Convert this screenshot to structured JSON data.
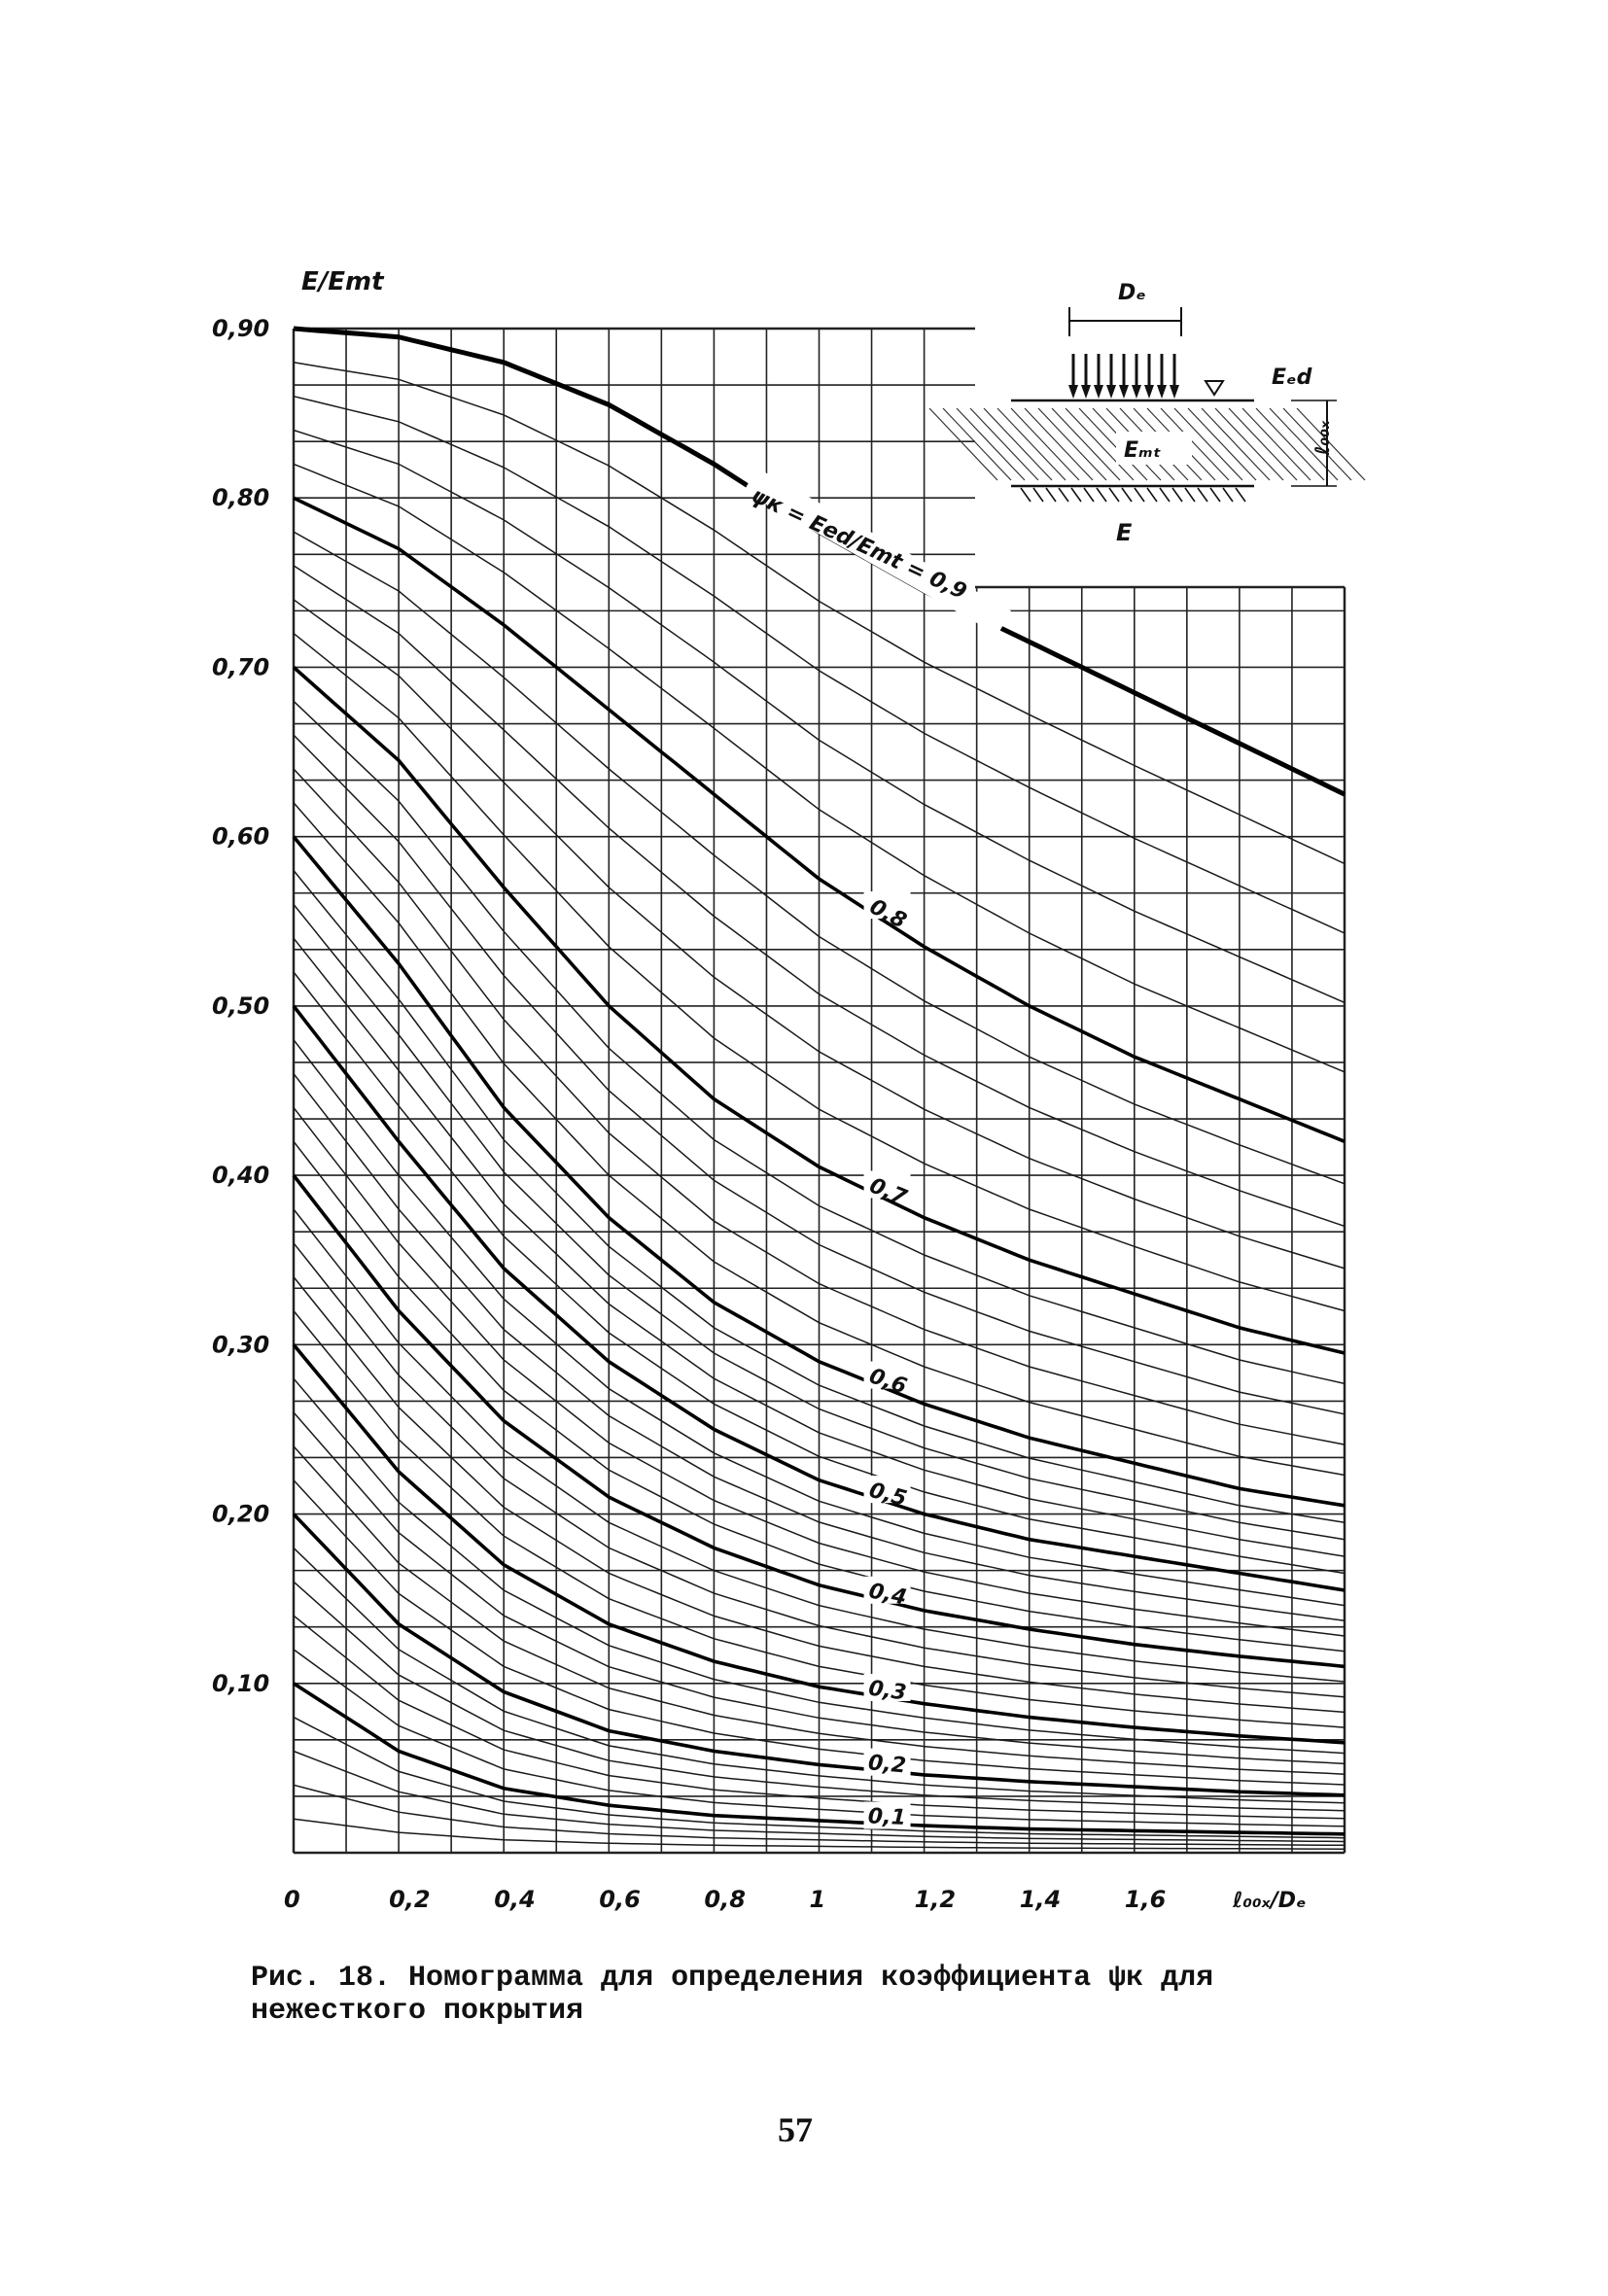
{
  "chart_data": {
    "type": "line",
    "ylabel": "E/Emt",
    "xlabel": "ℓ₀₀ₓ/Dₑ",
    "xlim": [
      0,
      2.0
    ],
    "ylim": [
      0,
      0.9
    ],
    "x_ticks": [
      {
        "value": 0,
        "label": "0"
      },
      {
        "value": 0.2,
        "label": "0,2"
      },
      {
        "value": 0.4,
        "label": "0,4"
      },
      {
        "value": 0.6,
        "label": "0,6"
      },
      {
        "value": 0.8,
        "label": "0,8"
      },
      {
        "value": 1.0,
        "label": "1"
      },
      {
        "value": 1.2,
        "label": "1,2"
      },
      {
        "value": 1.4,
        "label": "1,4"
      },
      {
        "value": 1.6,
        "label": "1,6"
      }
    ],
    "y_ticks": [
      {
        "value": 0.9,
        "label": "0,90"
      },
      {
        "value": 0.8,
        "label": "0,80"
      },
      {
        "value": 0.7,
        "label": "0,70"
      },
      {
        "value": 0.6,
        "label": "0,60"
      },
      {
        "value": 0.5,
        "label": "0,50"
      },
      {
        "value": 0.4,
        "label": "0,40"
      },
      {
        "value": 0.3,
        "label": "0,30"
      },
      {
        "value": 0.2,
        "label": "0,20"
      },
      {
        "value": 0.1,
        "label": "0,10"
      }
    ],
    "grid": true,
    "series": [
      {
        "name": "ψк = Eed/Emt = 0,9",
        "label_at_x": 1.1,
        "x": [
          0,
          0.2,
          0.4,
          0.6,
          0.8,
          1.0,
          1.2,
          1.4,
          1.6,
          1.8,
          2.0
        ],
        "values": [
          0.9,
          0.895,
          0.88,
          0.855,
          0.82,
          0.78,
          0.745,
          0.715,
          0.685,
          0.655,
          0.625
        ]
      },
      {
        "name": "0,8",
        "label_at_x": 1.1,
        "x": [
          0,
          0.2,
          0.4,
          0.6,
          0.8,
          1.0,
          1.2,
          1.4,
          1.6,
          1.8,
          2.0
        ],
        "values": [
          0.8,
          0.77,
          0.725,
          0.675,
          0.625,
          0.575,
          0.535,
          0.5,
          0.47,
          0.445,
          0.42
        ]
      },
      {
        "name": "0,7",
        "label_at_x": 1.1,
        "x": [
          0,
          0.2,
          0.4,
          0.6,
          0.8,
          1.0,
          1.2,
          1.4,
          1.6,
          1.8,
          2.0
        ],
        "values": [
          0.7,
          0.645,
          0.57,
          0.5,
          0.445,
          0.405,
          0.375,
          0.35,
          0.33,
          0.31,
          0.295
        ]
      },
      {
        "name": "0,6",
        "label_at_x": 1.1,
        "x": [
          0,
          0.2,
          0.4,
          0.6,
          0.8,
          1.0,
          1.2,
          1.4,
          1.6,
          1.8,
          2.0
        ],
        "values": [
          0.6,
          0.525,
          0.44,
          0.375,
          0.325,
          0.29,
          0.265,
          0.245,
          0.23,
          0.215,
          0.205
        ]
      },
      {
        "name": "0,5",
        "label_at_x": 1.1,
        "x": [
          0,
          0.2,
          0.4,
          0.6,
          0.8,
          1.0,
          1.2,
          1.4,
          1.6,
          1.8,
          2.0
        ],
        "values": [
          0.5,
          0.42,
          0.345,
          0.29,
          0.25,
          0.22,
          0.2,
          0.185,
          0.175,
          0.165,
          0.155
        ]
      },
      {
        "name": "0,4",
        "label_at_x": 1.1,
        "x": [
          0,
          0.2,
          0.4,
          0.6,
          0.8,
          1.0,
          1.2,
          1.4,
          1.6,
          1.8,
          2.0
        ],
        "values": [
          0.4,
          0.32,
          0.255,
          0.21,
          0.18,
          0.158,
          0.143,
          0.132,
          0.123,
          0.116,
          0.11
        ]
      },
      {
        "name": "0,3",
        "label_at_x": 1.1,
        "x": [
          0,
          0.2,
          0.4,
          0.6,
          0.8,
          1.0,
          1.2,
          1.4,
          1.6,
          1.8,
          2.0
        ],
        "values": [
          0.3,
          0.225,
          0.17,
          0.135,
          0.113,
          0.098,
          0.088,
          0.08,
          0.074,
          0.069,
          0.065
        ]
      },
      {
        "name": "0,2",
        "label_at_x": 1.1,
        "x": [
          0,
          0.2,
          0.4,
          0.6,
          0.8,
          1.0,
          1.2,
          1.4,
          1.6,
          1.8,
          2.0
        ],
        "values": [
          0.2,
          0.135,
          0.095,
          0.072,
          0.06,
          0.052,
          0.046,
          0.042,
          0.039,
          0.036,
          0.034
        ]
      },
      {
        "name": "0,1",
        "label_at_x": 1.1,
        "x": [
          0,
          0.2,
          0.4,
          0.6,
          0.8,
          1.0,
          1.2,
          1.4,
          1.6,
          1.8,
          2.0
        ],
        "values": [
          0.1,
          0.06,
          0.038,
          0.028,
          0.022,
          0.019,
          0.016,
          0.014,
          0.013,
          0.012,
          0.011
        ]
      }
    ],
    "inset": {
      "width_label": "Dₑ",
      "top_label": "Eₑd",
      "layer_label": "Eₘₜ",
      "bottom_label": "E",
      "thickness_label": "ℓ₀₀ₓ"
    }
  },
  "caption": {
    "line1": "Рис. 18. Номограмма для определения коэффициента ψк для",
    "line2": "нежесткого покрытия"
  },
  "page_number": "57"
}
